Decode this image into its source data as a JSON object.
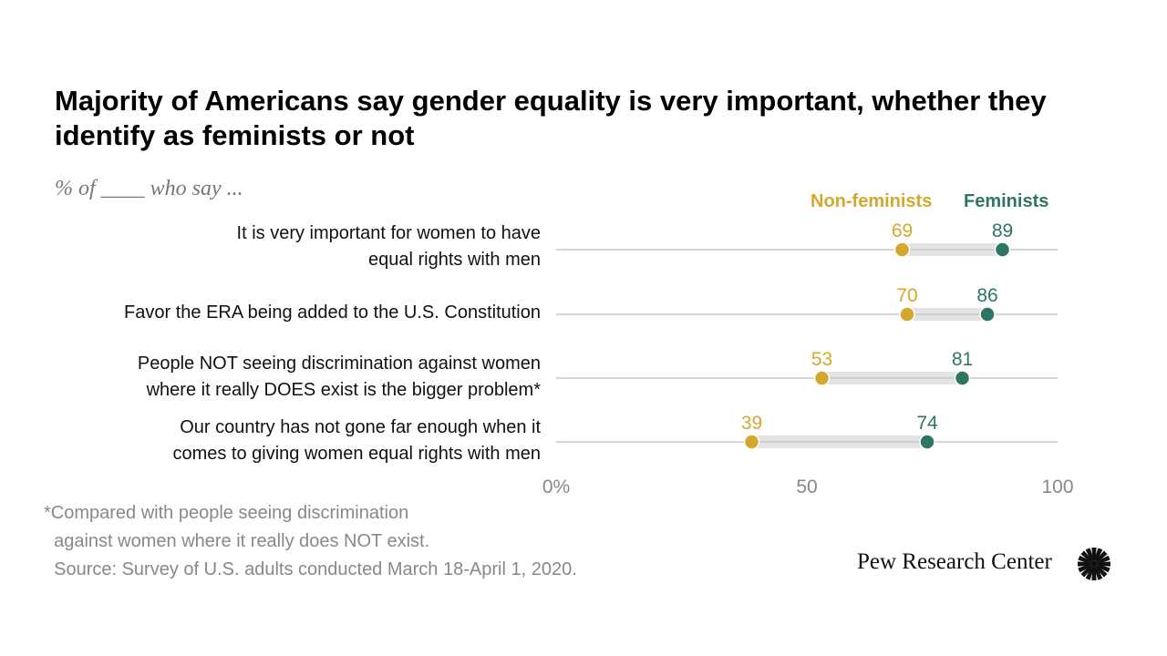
{
  "header": {
    "title": "Majority of Americans say gender equality is very important, whether they identify as feminists or not",
    "subtitle": "% of ____ who say ..."
  },
  "colors": {
    "non_feminists": "#d4a82e",
    "feminists": "#2e7565",
    "range_bar": "#e4e4e4",
    "axis_line": "#c8c8c8"
  },
  "chart_data": {
    "type": "dot-plot",
    "title": "Majority of Americans say gender equality is very important, whether they identify as feminists or not",
    "categories": [
      [
        "It is very important for women to have",
        "equal rights with men"
      ],
      [
        "Favor the ERA being added to the U.S. Constitution"
      ],
      [
        "People NOT seeing discrimination against women",
        "where it really DOES exist is the bigger problem*"
      ],
      [
        "Our country has not gone far enough when it",
        "comes to giving women equal rights with men"
      ]
    ],
    "series": [
      {
        "name": "Non-feminists",
        "values": [
          69,
          70,
          53,
          39
        ]
      },
      {
        "name": "Feminists",
        "values": [
          89,
          86,
          81,
          74
        ]
      }
    ],
    "xlim": [
      0,
      100
    ],
    "x_ticks": [
      "0%",
      "50",
      "100"
    ],
    "legend": "top-right"
  },
  "footer": {
    "note_lines": [
      "*Compared with people seeing discrimination",
      "  against women where it really does NOT exist.",
      "  Source: Survey of U.S. adults conducted March 18-April 1, 2020."
    ],
    "logo_text": "Pew Research Center"
  }
}
